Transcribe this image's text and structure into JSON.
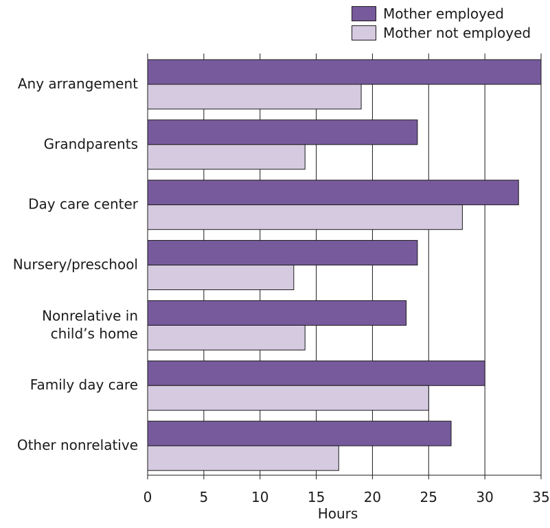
{
  "chart_data": {
    "type": "bar",
    "orientation": "horizontal",
    "categories": [
      "Any arrangement",
      "Grandparents",
      "Day care center",
      "Nursery/preschool",
      "Nonrelative in child’s home",
      "Family day care",
      "Other nonrelative"
    ],
    "category_lines": [
      [
        "Any arrangement"
      ],
      [
        "Grandparents"
      ],
      [
        "Day care center"
      ],
      [
        "Nursery/preschool"
      ],
      [
        "Nonrelative in",
        "child’s home"
      ],
      [
        "Family day care"
      ],
      [
        "Other nonrelative"
      ]
    ],
    "series": [
      {
        "name": "Mother employed",
        "color": "#775a9c",
        "values": [
          35,
          24,
          33,
          24,
          23,
          30,
          27
        ]
      },
      {
        "name": "Mother not employed",
        "color": "#d5cae0",
        "values": [
          19,
          14,
          28,
          13,
          14,
          25,
          17
        ]
      }
    ],
    "xlabel": "Hours",
    "xlim": [
      0,
      35
    ],
    "xticks": [
      0,
      5,
      10,
      15,
      20,
      25,
      30,
      35
    ],
    "grid": "vertical",
    "legend_position": "top-right"
  }
}
